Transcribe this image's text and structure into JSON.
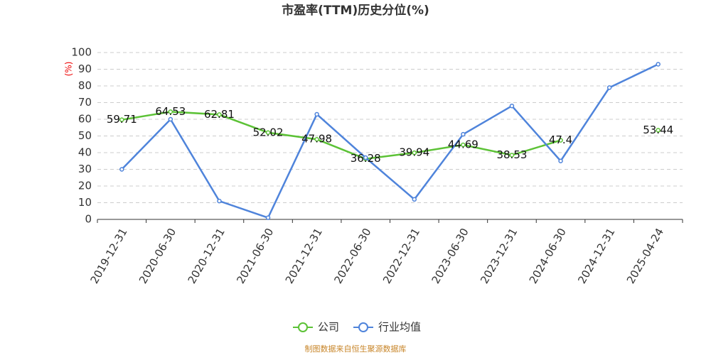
{
  "chart_data": {
    "type": "line",
    "title": "市盈率(TTM)历史分位(%)",
    "y_label": "(%)",
    "categories": [
      "2019-12-31",
      "2020-06-30",
      "2020-12-31",
      "2021-06-30",
      "2021-12-31",
      "2022-06-30",
      "2022-12-31",
      "2023-06-30",
      "2023-12-31",
      "2024-06-30",
      "2024-12-31",
      "2025-04-24"
    ],
    "series": [
      {
        "name": "公司",
        "color": "#5cc236",
        "values": [
          59.71,
          64.53,
          62.81,
          52.02,
          47.98,
          36.28,
          39.94,
          44.69,
          38.53,
          47.4,
          null,
          53.44
        ]
      },
      {
        "name": "行业均值",
        "color": "#4f84db",
        "values": [
          30,
          60,
          11,
          1,
          63,
          37,
          12,
          51,
          68,
          35,
          79,
          93
        ]
      }
    ],
    "ylim": [
      0,
      100
    ],
    "yticks": [
      0,
      10,
      20,
      30,
      40,
      50,
      60,
      70,
      80,
      90,
      100
    ],
    "grid": true,
    "source": "制图数据来自恒生聚源数据库"
  }
}
